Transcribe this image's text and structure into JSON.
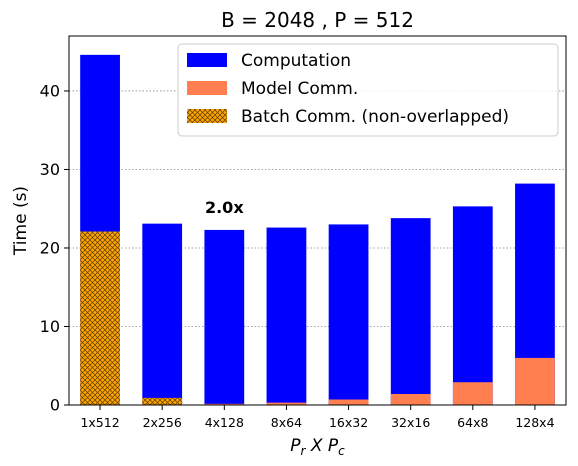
{
  "chart_data": {
    "type": "bar",
    "title": "B = 2048 ,  P = 512",
    "xlabel": {
      "base1": "P",
      "sub1": "r",
      "mid": " X ",
      "base2": "P",
      "sub2": "c"
    },
    "ylabel": "Time (s)",
    "ylim": [
      0,
      47
    ],
    "yticks": [
      0,
      10,
      20,
      30,
      40
    ],
    "grid": "horizontal dotted",
    "legend_position": "top-right",
    "categories": [
      "1x512",
      "2x256",
      "4x128",
      "8x64",
      "16x32",
      "32x16",
      "64x8",
      "128x4"
    ],
    "series": [
      {
        "name": "Computation",
        "color": "#0000ff",
        "pattern": "solid",
        "role": "total",
        "values": [
          44.6,
          23.1,
          22.3,
          22.6,
          23.0,
          23.8,
          25.3,
          28.2
        ]
      },
      {
        "name": "Model Comm.",
        "color": "#ff7f50",
        "pattern": "solid",
        "role": "bottom",
        "values": [
          0,
          0.9,
          0.15,
          0.3,
          0.7,
          1.4,
          2.9,
          6.0
        ]
      },
      {
        "name": "Batch Comm. (non-overlapped)",
        "color": "#ffa500",
        "pattern": "crosshatch",
        "role": "bottom",
        "values": [
          22.1,
          0.9,
          0,
          0,
          0,
          0,
          0,
          0
        ]
      }
    ],
    "annotations": [
      {
        "text": "2.0x",
        "x_category": "4x128",
        "y": 25.2
      }
    ]
  }
}
